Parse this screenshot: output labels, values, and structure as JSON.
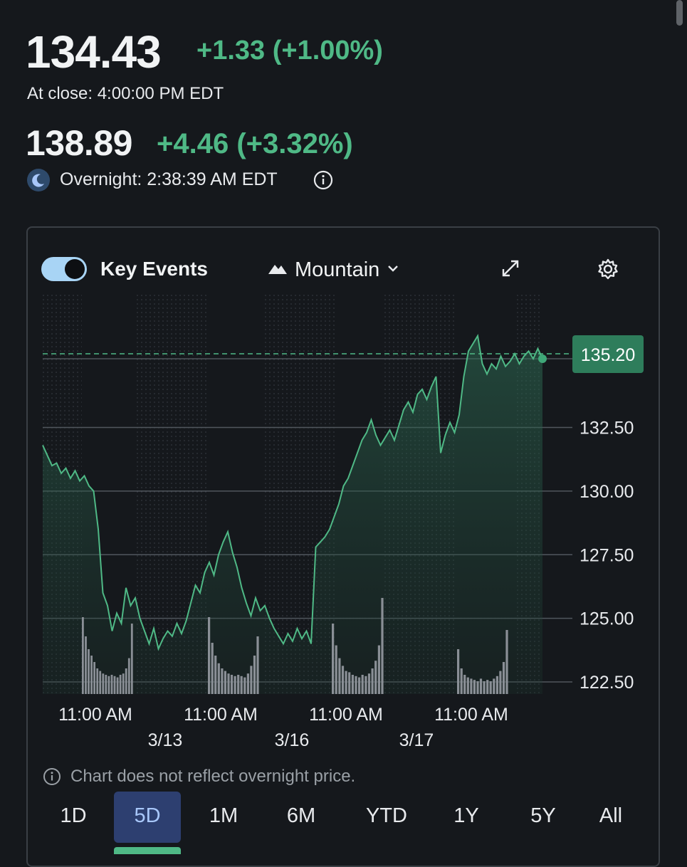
{
  "quote": {
    "price": "134.43",
    "change": "+1.33 (+1.00%)",
    "close_time": "At close: 4:00:00 PM EDT",
    "overnight_price": "138.89",
    "overnight_change": "+4.46 (+3.32%)",
    "overnight_time": "Overnight: 2:38:39 AM EDT"
  },
  "toolbar": {
    "key_events_label": "Key Events",
    "key_events_on": true,
    "chart_type_label": "Mountain"
  },
  "colors": {
    "accent_green": "#4fb986",
    "active_range_bg": "#2d3f70"
  },
  "chart_data": {
    "type": "area",
    "y_ticks": [
      "135.20",
      "132.50",
      "130.00",
      "127.50",
      "125.00",
      "122.50"
    ],
    "ylim": [
      122.0,
      137.0
    ],
    "x_tick_labels": [
      "11:00 AM",
      "11:00 AM",
      "11:00 AM",
      "11:00 AM"
    ],
    "date_labels": [
      "3/13",
      "3/16",
      "3/17"
    ],
    "current_price_label": "135.20",
    "series": [
      {
        "values": [
          131.8,
          131.4,
          131.0,
          131.1,
          130.7,
          130.9,
          130.5,
          130.8,
          130.4,
          130.6,
          130.2,
          130.0,
          128.5,
          126.0,
          125.5,
          124.5,
          125.2,
          124.8,
          126.2,
          125.5,
          125.8,
          125.0,
          124.5,
          124.0,
          124.6,
          123.8,
          124.2,
          124.5,
          124.3,
          124.8,
          124.4,
          124.9,
          125.6,
          126.3,
          126.0,
          126.8,
          127.2,
          126.7,
          127.5,
          128.0,
          128.4,
          127.6,
          127.0,
          126.2,
          125.6,
          125.1,
          125.8,
          125.3,
          125.5,
          125.0,
          124.6,
          124.3,
          124.0,
          124.4,
          124.1,
          124.6,
          124.2,
          124.5,
          124.0,
          127.8,
          128.0,
          128.2,
          128.5,
          129.0,
          129.5,
          130.2,
          130.5,
          131.0,
          131.5,
          132.0,
          132.3,
          132.8,
          132.2,
          131.8,
          132.1,
          132.4,
          132.0,
          132.6,
          133.2,
          133.5,
          133.1,
          133.8,
          134.0,
          133.6,
          134.1,
          134.5,
          131.5,
          132.2,
          132.7,
          132.3,
          133.0,
          134.5,
          135.5,
          135.8,
          136.1,
          135.0,
          134.6,
          135.0,
          134.8,
          135.3,
          134.9,
          135.1,
          135.4,
          135.0,
          135.3,
          135.5,
          135.2,
          135.6,
          135.2
        ]
      }
    ],
    "volume": [
      0.6,
      0.45,
      0.35,
      0.3,
      0.25,
      0.2,
      0.18,
      0.16,
      0.15,
      0.14,
      0.15,
      0.14,
      0.13,
      0.15,
      0.16,
      0.2,
      0.28,
      0.55,
      0.6,
      0.4,
      0.3,
      0.24,
      0.2,
      0.18,
      0.16,
      0.15,
      0.14,
      0.15,
      0.14,
      0.13,
      0.16,
      0.22,
      0.3,
      0.45,
      0.55,
      0.38,
      0.28,
      0.22,
      0.18,
      0.17,
      0.15,
      0.14,
      0.13,
      0.15,
      0.14,
      0.16,
      0.2,
      0.26,
      0.38,
      0.75,
      0.35,
      0.2,
      0.15,
      0.13,
      0.12,
      0.11,
      0.1,
      0.12,
      0.1,
      0.11,
      0.1,
      0.12,
      0.14,
      0.18,
      0.25,
      0.5
    ],
    "grid": true
  },
  "note": {
    "text": "Chart does not reflect overnight price."
  },
  "ranges": {
    "items": [
      "1D",
      "5D",
      "1M",
      "6M",
      "YTD",
      "1Y",
      "5Y",
      "All"
    ],
    "selected": "5D"
  }
}
